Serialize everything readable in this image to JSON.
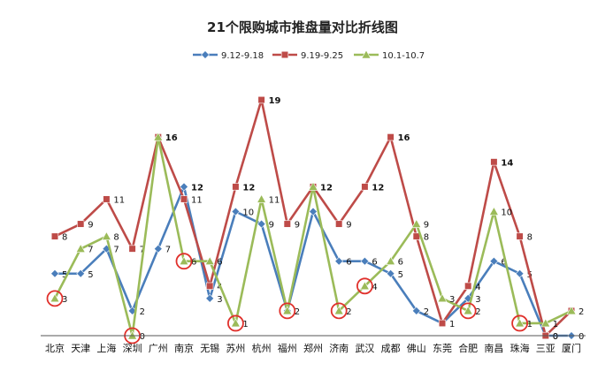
{
  "chart_data": {
    "type": "line",
    "title": "21个限购城市推盘量对比折线图",
    "categories": [
      "北京",
      "天津",
      "上海",
      "深圳",
      "广州",
      "南京",
      "无锡",
      "苏州",
      "杭州",
      "福州",
      "郑州",
      "济南",
      "武汉",
      "成都",
      "佛山",
      "东莞",
      "合肥",
      "南昌",
      "珠海",
      "三亚",
      "厦门"
    ],
    "series": [
      {
        "name": "9.12-9.18",
        "color": "#4a7ebb",
        "values": [
          5,
          5,
          7,
          2,
          7,
          12,
          3,
          10,
          9,
          2,
          10,
          6,
          6,
          5,
          2,
          1,
          3,
          6,
          5,
          0,
          0
        ],
        "labels": [
          "5",
          "5",
          "7",
          "2",
          "7",
          "12",
          "3",
          "10",
          "9",
          "",
          "",
          "6",
          "6",
          "5",
          "2",
          "",
          "3",
          "6",
          "5",
          "0",
          "0"
        ]
      },
      {
        "name": "9.19-9.25",
        "color": "#be4b48",
        "values": [
          8,
          9,
          11,
          7,
          16,
          11,
          4,
          12,
          19,
          9,
          12,
          9,
          12,
          16,
          8,
          1,
          4,
          14,
          8,
          0,
          2
        ],
        "labels": [
          "8",
          "9",
          "11",
          "7",
          "16",
          "11",
          "4",
          "12",
          "19",
          "9",
          "12",
          "9",
          "12",
          "16",
          "8",
          "1",
          "4",
          "14",
          "8",
          "0",
          ""
        ]
      },
      {
        "name": "10.1-10.7",
        "color": "#9bbb59",
        "values": [
          3,
          7,
          8,
          0,
          16,
          6,
          6,
          1,
          11,
          2,
          12,
          2,
          4,
          6,
          9,
          3,
          2,
          10,
          1,
          1,
          2
        ],
        "labels": [
          "3",
          "7",
          "8",
          "0",
          "",
          "6",
          "6",
          "1",
          "11",
          "2",
          "",
          "2",
          "4",
          "6",
          "9",
          "3",
          "2",
          "10",
          "1",
          "1",
          "2"
        ]
      }
    ],
    "highlighted_points": [
      {
        "series": "10.1-10.7",
        "category": "北京"
      },
      {
        "series": "10.1-10.7",
        "category": "深圳"
      },
      {
        "series": "10.1-10.7",
        "category": "南京"
      },
      {
        "series": "10.1-10.7",
        "category": "苏州"
      },
      {
        "series": "10.1-10.7",
        "category": "福州"
      },
      {
        "series": "10.1-10.7",
        "category": "济南"
      },
      {
        "series": "10.1-10.7",
        "category": "武汉"
      },
      {
        "series": "10.1-10.7",
        "category": "合肥"
      },
      {
        "series": "10.1-10.7",
        "category": "珠海"
      }
    ],
    "highlight_color": "#e0302b",
    "ylim": [
      0,
      20
    ],
    "grid": false,
    "legend_position": "top",
    "xlabel": "",
    "ylabel": ""
  }
}
